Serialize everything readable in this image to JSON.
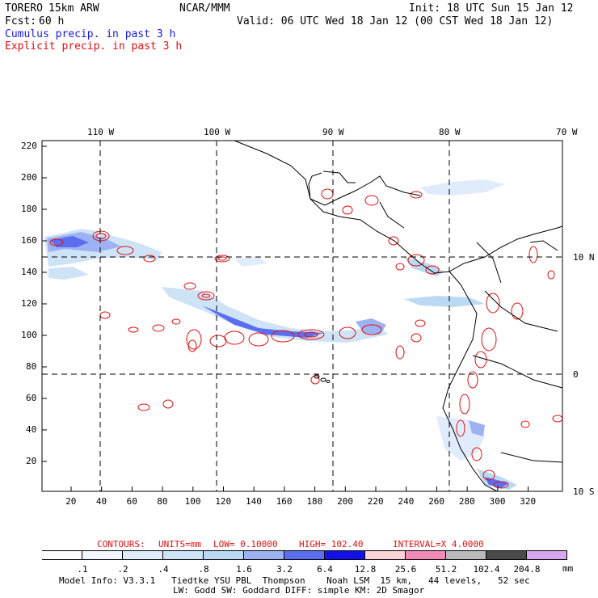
{
  "header": {
    "model": "TORERO",
    "resolution": "15km ARW",
    "org": "NCAR/MMM",
    "init": "Init: 18 UTC Sun 15 Jan 12",
    "fcst_label": "Fcst:",
    "fcst_value": "60 h",
    "valid": "Valid: 06 UTC Wed 18 Jan 12 (00 CST Wed 18 Jan 12)",
    "legend_cumulus": "Cumulus precip. in past 3 h",
    "legend_explicit": "Explicit precip. in past 3 h"
  },
  "map": {
    "top_lon_labels": [
      "110 W",
      "100 W",
      "90 W",
      "80 W",
      "70 W"
    ],
    "right_lat_labels": [
      "10 N",
      "0",
      "10 S"
    ],
    "left_y_ticks": [
      "220",
      "200",
      "180",
      "160",
      "140",
      "120",
      "100",
      "80",
      "60",
      "40",
      "20"
    ],
    "bottom_x_ticks": [
      "20",
      "40",
      "60",
      "80",
      "100",
      "120",
      "140",
      "160",
      "180",
      "200",
      "220",
      "240",
      "260",
      "280",
      "300",
      "320"
    ]
  },
  "contours": {
    "title": "CONTOURS:",
    "units": "UNITS=mm",
    "low": "LOW= 0.10000",
    "high": "HIGH= 102.40",
    "interval": "INTERVAL=X 4.0000"
  },
  "colorbar": {
    "labels": [
      ".1",
      ".2",
      ".4",
      ".8",
      "1.6",
      "3.2",
      "6.4",
      "12.8",
      "25.6",
      "51.2",
      "102.4",
      "204.8"
    ],
    "colors": [
      "#ffffff",
      "#f2f6ff",
      "#e0ecfb",
      "#cfe3f7",
      "#bcd9f4",
      "#9cb2f2",
      "#5c6ef0",
      "#1010e8",
      "#f9d3d6",
      "#f28ab7",
      "#bababa",
      "#4a4a4a",
      "#d6a6ee"
    ],
    "unit": "mm"
  },
  "footer": {
    "line1": "Model Info: V3.3.1   Tiedtke YSU PBL  Thompson    Noah LSM  15 km,   44 levels,   52 sec",
    "line2": "LW: Godd SW: Goddard DIFF: simple KM: 2D Smagor"
  }
}
